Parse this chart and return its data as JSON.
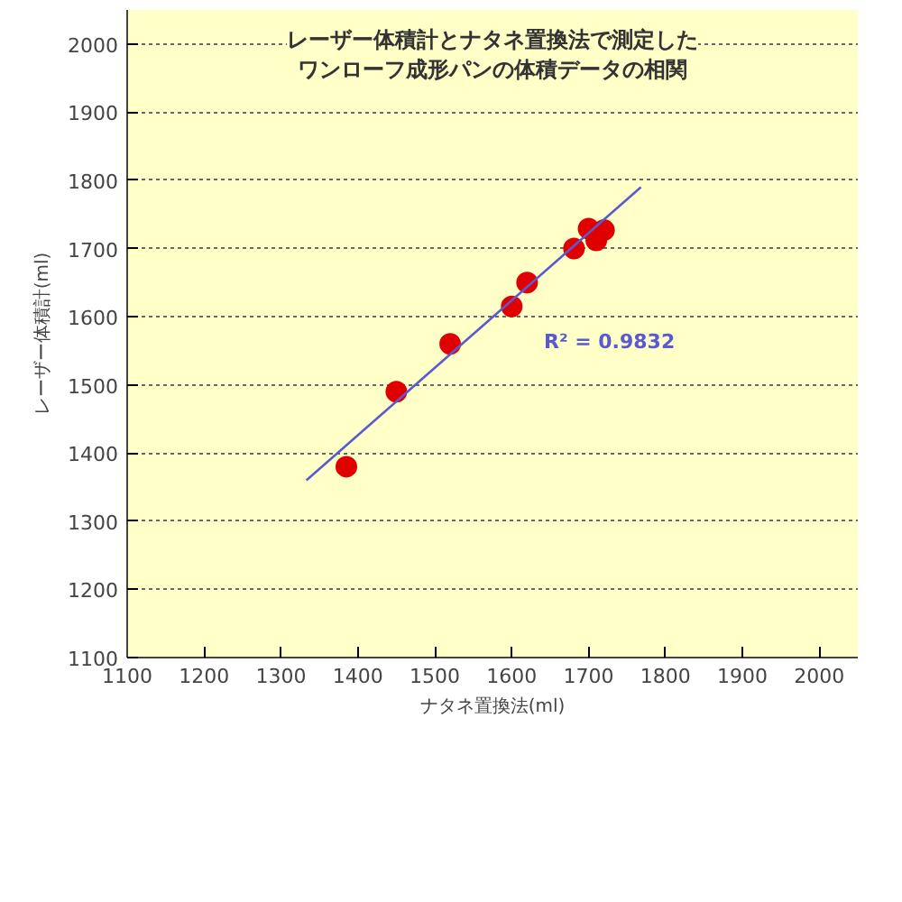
{
  "chart_data": {
    "type": "scatter",
    "title": "レーザー体積計とナタネ置換法で測定したワンローフ成形パンの体積データの相関",
    "xlabel": "ナタネ置換法(ml)",
    "ylabel": "レーザー体積計(ml)",
    "xlim": [
      1100,
      2050
    ],
    "ylim": [
      1100,
      2050
    ],
    "xticks": [
      1100,
      1200,
      1300,
      1400,
      1500,
      1600,
      1700,
      1800,
      1900,
      2000
    ],
    "yticks": [
      1100,
      1200,
      1300,
      1400,
      1500,
      1600,
      1700,
      1800,
      1900,
      2000
    ],
    "grid": "y",
    "series": [
      {
        "color": "#e00000",
        "marker": "circle",
        "x": [
          1385,
          1450,
          1520,
          1600,
          1620,
          1681,
          1700,
          1710,
          1720
        ],
        "values": [
          1380,
          1490,
          1560,
          1615,
          1650,
          1700,
          1729,
          1712,
          1727
        ]
      },
      {
        "type": "line",
        "color": "#5a5ad0",
        "line_style": "solid",
        "x": [
          1333,
          1768
        ],
        "values": [
          1360,
          1790
        ]
      }
    ],
    "annotations": [
      "R² = 0.9832"
    ]
  }
}
